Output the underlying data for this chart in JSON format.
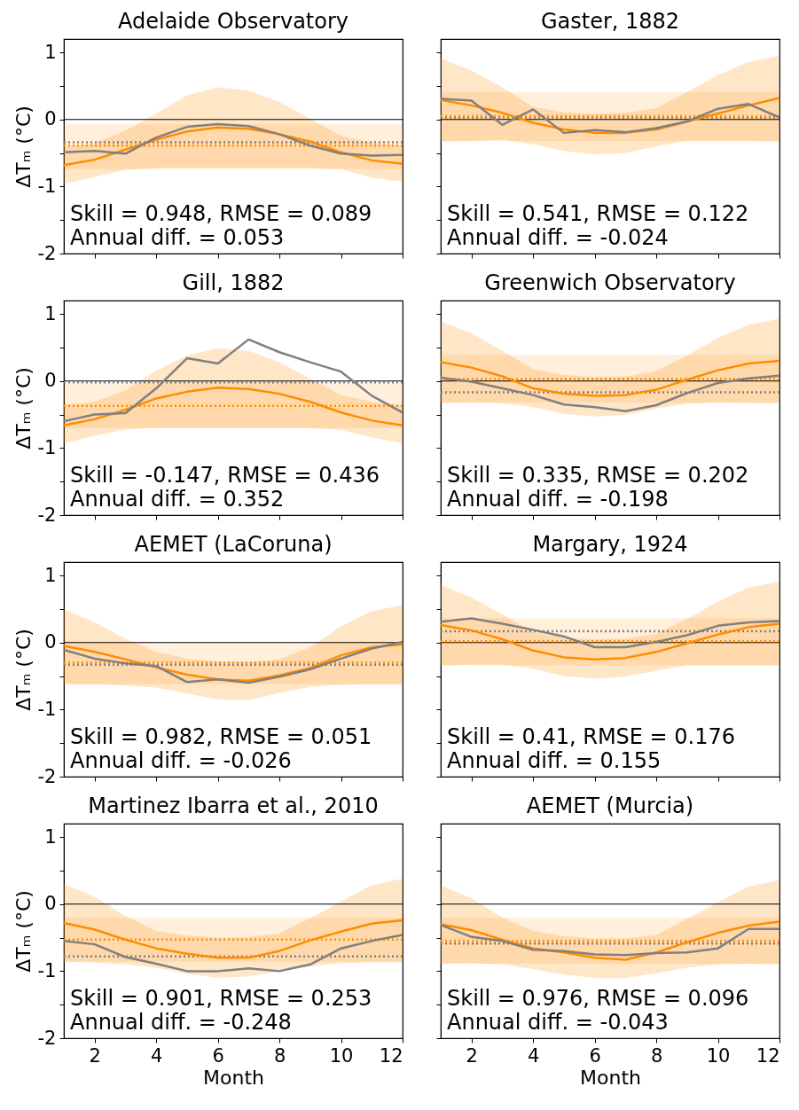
{
  "chart_data": [
    {
      "type": "line",
      "title": "Adelaide Observatory",
      "ylabel": "ΔTₘ (°C)",
      "x": [
        1,
        2,
        3,
        4,
        5,
        6,
        7,
        8,
        9,
        10,
        11,
        12
      ],
      "xlim": [
        1,
        12
      ],
      "ylim": [
        -2,
        1.2
      ],
      "xticks": [
        2,
        4,
        6,
        8,
        10,
        12
      ],
      "yticks": [
        -2,
        {
          "value": -1.5,
          "label": null
        },
        -1,
        {
          "value": -0.5,
          "label": null
        },
        0,
        {
          "value": 0.5,
          "label": null
        },
        1
      ],
      "tick_labels": "y",
      "series": [
        {
          "color": "#ff8c00",
          "values": [
            -0.68,
            -0.6,
            -0.45,
            -0.3,
            -0.18,
            -0.12,
            -0.14,
            -0.22,
            -0.33,
            -0.49,
            -0.61,
            -0.66
          ],
          "lower": [
            -0.96,
            -0.86,
            -0.75,
            -0.72,
            -0.72,
            -0.72,
            -0.72,
            -0.72,
            -0.72,
            -0.74,
            -0.87,
            -0.93
          ],
          "upper": [
            -0.42,
            -0.35,
            -0.17,
            0.09,
            0.36,
            0.48,
            0.43,
            0.26,
            0.01,
            -0.24,
            -0.35,
            -0.39
          ]
        },
        {
          "color": "#808080",
          "values": [
            -0.49,
            -0.47,
            -0.51,
            -0.27,
            -0.11,
            -0.07,
            -0.1,
            -0.22,
            -0.39,
            -0.51,
            -0.54,
            -0.53
          ]
        }
      ],
      "bands": [
        {
          "axis": "y",
          "from": -0.74,
          "to": -0.07,
          "color": "#ff8c00"
        }
      ],
      "ref_lines": [
        {
          "axis": "y",
          "value": 0,
          "color": "#000000"
        },
        {
          "axis": "y",
          "value": -0.34,
          "color": "#808080",
          "line_style": "dotted"
        },
        {
          "axis": "y",
          "value": -0.39,
          "color": "#ff8c00",
          "line_style": "dotted"
        }
      ],
      "annotations": [
        "Skill = 0.948,  RMSE = 0.089",
        "Annual diff. = 0.053"
      ]
    },
    {
      "type": "line",
      "title": "Gaster, 1882",
      "x": [
        1,
        2,
        3,
        4,
        5,
        6,
        7,
        8,
        9,
        10,
        11,
        12
      ],
      "xlim": [
        1,
        12
      ],
      "ylim": [
        -2,
        1.2
      ],
      "xticks": [
        2,
        4,
        6,
        8,
        10,
        12
      ],
      "yticks": [
        -2,
        {
          "value": -1.5,
          "label": null
        },
        -1,
        {
          "value": -0.5,
          "label": null
        },
        0,
        {
          "value": 0.5,
          "label": null
        },
        1
      ],
      "tick_labels": false,
      "series": [
        {
          "color": "#ff8c00",
          "values": [
            0.29,
            0.21,
            0.1,
            -0.05,
            -0.15,
            -0.2,
            -0.2,
            -0.15,
            -0.03,
            0.09,
            0.21,
            0.32
          ],
          "lower": [
            -0.33,
            -0.32,
            -0.3,
            -0.37,
            -0.47,
            -0.52,
            -0.5,
            -0.4,
            -0.32,
            -0.32,
            -0.32,
            -0.33
          ],
          "upper": [
            0.91,
            0.73,
            0.48,
            0.19,
            0.11,
            0.09,
            0.1,
            0.17,
            0.41,
            0.66,
            0.86,
            0.95
          ]
        },
        {
          "color": "#808080",
          "values": [
            0.31,
            0.28,
            -0.08,
            0.15,
            -0.2,
            -0.16,
            -0.19,
            -0.13,
            -0.03,
            0.16,
            0.23,
            0.03
          ]
        }
      ],
      "bands": [
        {
          "axis": "y",
          "from": -0.32,
          "to": 0.41,
          "color": "#ff8c00"
        }
      ],
      "ref_lines": [
        {
          "axis": "y",
          "value": 0,
          "color": "#000000"
        },
        {
          "axis": "y",
          "value": 0.03,
          "color": "#808080",
          "line_style": "dotted"
        },
        {
          "axis": "y",
          "value": 0.05,
          "color": "#ff8c00",
          "line_style": "dotted"
        }
      ],
      "annotations": [
        "Skill = 0.541,  RMSE = 0.122",
        "Annual diff. = -0.024"
      ]
    },
    {
      "type": "line",
      "title": "Gill, 1882",
      "ylabel": "ΔTₘ (°C)",
      "x": [
        1,
        2,
        3,
        4,
        5,
        6,
        7,
        8,
        9,
        10,
        11,
        12
      ],
      "xlim": [
        1,
        12
      ],
      "ylim": [
        -2,
        1.2
      ],
      "xticks": [
        2,
        4,
        6,
        8,
        10,
        12
      ],
      "yticks": [
        -2,
        {
          "value": -1.5,
          "label": null
        },
        -1,
        {
          "value": -0.5,
          "label": null
        },
        0,
        {
          "value": 0.5,
          "label": null
        },
        1
      ],
      "tick_labels": "y",
      "series": [
        {
          "color": "#ff8c00",
          "values": [
            -0.66,
            -0.57,
            -0.43,
            -0.26,
            -0.16,
            -0.1,
            -0.12,
            -0.19,
            -0.31,
            -0.47,
            -0.59,
            -0.66
          ],
          "lower": [
            -0.93,
            -0.82,
            -0.72,
            -0.7,
            -0.7,
            -0.7,
            -0.7,
            -0.7,
            -0.7,
            -0.73,
            -0.84,
            -0.93
          ],
          "upper": [
            -0.36,
            -0.31,
            -0.14,
            0.16,
            0.38,
            0.49,
            0.45,
            0.28,
            0.04,
            -0.21,
            -0.31,
            -0.36
          ]
        },
        {
          "color": "#808080",
          "values": [
            -0.6,
            -0.5,
            -0.48,
            -0.11,
            0.34,
            0.26,
            0.62,
            0.43,
            0.28,
            0.14,
            -0.22,
            -0.47
          ]
        }
      ],
      "bands": [
        {
          "axis": "y",
          "from": -0.7,
          "to": -0.03,
          "color": "#ff8c00"
        }
      ],
      "ref_lines": [
        {
          "axis": "y",
          "value": 0,
          "color": "#000000"
        },
        {
          "axis": "y",
          "value": -0.02,
          "color": "#808080",
          "line_style": "dotted"
        },
        {
          "axis": "y",
          "value": -0.37,
          "color": "#ff8c00",
          "line_style": "dotted"
        }
      ],
      "annotations": [
        "Skill = -0.147,  RMSE = 0.436",
        "Annual diff. = 0.352"
      ]
    },
    {
      "type": "line",
      "title": "Greenwich Observatory",
      "x": [
        1,
        2,
        3,
        4,
        5,
        6,
        7,
        8,
        9,
        10,
        11,
        12
      ],
      "xlim": [
        1,
        12
      ],
      "ylim": [
        -2,
        1.2
      ],
      "xticks": [
        2,
        4,
        6,
        8,
        10,
        12
      ],
      "yticks": [
        -2,
        {
          "value": -1.5,
          "label": null
        },
        -1,
        {
          "value": -0.5,
          "label": null
        },
        0,
        {
          "value": 0.5,
          "label": null
        },
        1
      ],
      "tick_labels": false,
      "series": [
        {
          "color": "#ff8c00",
          "values": [
            0.28,
            0.2,
            0.07,
            -0.11,
            -0.19,
            -0.22,
            -0.21,
            -0.13,
            0.02,
            0.16,
            0.26,
            0.3
          ],
          "lower": [
            -0.33,
            -0.32,
            -0.33,
            -0.39,
            -0.49,
            -0.53,
            -0.51,
            -0.41,
            -0.34,
            -0.32,
            -0.33,
            -0.33
          ],
          "upper": [
            0.89,
            0.71,
            0.45,
            0.18,
            0.09,
            0.06,
            0.07,
            0.15,
            0.38,
            0.64,
            0.84,
            0.93
          ]
        },
        {
          "color": "#808080",
          "values": [
            0.05,
            -0.01,
            -0.11,
            -0.21,
            -0.35,
            -0.39,
            -0.45,
            -0.36,
            -0.18,
            -0.03,
            0.04,
            0.08
          ]
        }
      ],
      "bands": [
        {
          "axis": "y",
          "from": -0.32,
          "to": 0.39,
          "color": "#ff8c00"
        }
      ],
      "ref_lines": [
        {
          "axis": "y",
          "value": 0,
          "color": "#000000"
        },
        {
          "axis": "y",
          "value": -0.17,
          "color": "#808080",
          "line_style": "dotted"
        },
        {
          "axis": "y",
          "value": 0.03,
          "color": "#ff8c00",
          "line_style": "dotted"
        }
      ],
      "annotations": [
        "Skill = 0.335,  RMSE = 0.202",
        "Annual diff. = -0.198"
      ]
    },
    {
      "type": "line",
      "title": "AEMET (LaCoruna)",
      "ylabel": "ΔTₘ (°C)",
      "x": [
        1,
        2,
        3,
        4,
        5,
        6,
        7,
        8,
        9,
        10,
        11,
        12
      ],
      "xlim": [
        1,
        12
      ],
      "ylim": [
        -2,
        1.2
      ],
      "xticks": [
        2,
        4,
        6,
        8,
        10,
        12
      ],
      "yticks": [
        -2,
        {
          "value": -1.5,
          "label": null
        },
        -1,
        {
          "value": -0.5,
          "label": null
        },
        0,
        {
          "value": 0.5,
          "label": null
        },
        1
      ],
      "tick_labels": "y",
      "series": [
        {
          "color": "#ff8c00",
          "values": [
            -0.05,
            -0.14,
            -0.25,
            -0.37,
            -0.48,
            -0.55,
            -0.57,
            -0.49,
            -0.38,
            -0.19,
            -0.07,
            -0.03
          ],
          "lower": [
            -0.62,
            -0.62,
            -0.64,
            -0.67,
            -0.76,
            -0.85,
            -0.86,
            -0.75,
            -0.66,
            -0.63,
            -0.62,
            -0.62
          ],
          "upper": [
            0.5,
            0.3,
            0.06,
            -0.14,
            -0.24,
            -0.28,
            -0.29,
            -0.25,
            -0.07,
            0.24,
            0.47,
            0.56
          ]
        },
        {
          "color": "#808080",
          "values": [
            -0.11,
            -0.24,
            -0.31,
            -0.35,
            -0.59,
            -0.55,
            -0.6,
            -0.51,
            -0.4,
            -0.24,
            -0.09,
            0.01
          ]
        }
      ],
      "bands": [
        {
          "axis": "y",
          "from": -0.62,
          "to": -0.01,
          "color": "#ff8c00"
        }
      ],
      "ref_lines": [
        {
          "axis": "y",
          "value": 0,
          "color": "#000000"
        },
        {
          "axis": "y",
          "value": -0.33,
          "color": "#808080",
          "line_style": "dotted"
        },
        {
          "axis": "y",
          "value": -0.3,
          "color": "#ff8c00",
          "line_style": "dotted"
        }
      ],
      "annotations": [
        "Skill = 0.982,  RMSE = 0.051",
        "Annual diff. = -0.026"
      ]
    },
    {
      "type": "line",
      "title": "Margary, 1924",
      "x": [
        1,
        2,
        3,
        4,
        5,
        6,
        7,
        8,
        9,
        10,
        11,
        12
      ],
      "xlim": [
        1,
        12
      ],
      "ylim": [
        -2,
        1.2
      ],
      "xticks": [
        2,
        4,
        6,
        8,
        10,
        12
      ],
      "yticks": [
        -2,
        {
          "value": -1.5,
          "label": null
        },
        -1,
        {
          "value": -0.5,
          "label": null
        },
        0,
        {
          "value": 0.5,
          "label": null
        },
        1
      ],
      "tick_labels": false,
      "series": [
        {
          "color": "#ff8c00",
          "values": [
            0.26,
            0.18,
            0.05,
            -0.12,
            -0.22,
            -0.25,
            -0.23,
            -0.14,
            -0.01,
            0.12,
            0.23,
            0.28
          ],
          "lower": [
            -0.34,
            -0.33,
            -0.33,
            -0.39,
            -0.5,
            -0.54,
            -0.51,
            -0.42,
            -0.34,
            -0.34,
            -0.34,
            -0.34
          ],
          "upper": [
            0.86,
            0.67,
            0.42,
            0.16,
            0.07,
            0.05,
            0.06,
            0.13,
            0.35,
            0.61,
            0.82,
            0.91
          ]
        },
        {
          "color": "#808080",
          "values": [
            0.31,
            0.36,
            0.28,
            0.19,
            0.09,
            -0.07,
            -0.07,
            0.01,
            0.11,
            0.25,
            0.3,
            0.32
          ]
        }
      ],
      "bands": [
        {
          "axis": "y",
          "from": -0.34,
          "to": 0.36,
          "color": "#ff8c00"
        }
      ],
      "ref_lines": [
        {
          "axis": "y",
          "value": 0,
          "color": "#000000"
        },
        {
          "axis": "y",
          "value": 0.17,
          "color": "#808080",
          "line_style": "dotted"
        },
        {
          "axis": "y",
          "value": 0.02,
          "color": "#ff8c00",
          "line_style": "dotted"
        }
      ],
      "annotations": [
        "Skill = 0.41,  RMSE = 0.176",
        "Annual diff. = 0.155"
      ]
    },
    {
      "type": "line",
      "title": "Martinez Ibarra et al., 2010",
      "ylabel": "ΔTₘ (°C)",
      "xlabel": "Month",
      "x": [
        1,
        2,
        3,
        4,
        5,
        6,
        7,
        8,
        9,
        10,
        11,
        12
      ],
      "xlim": [
        1,
        12
      ],
      "ylim": [
        -2,
        1.2
      ],
      "xticks": [
        2,
        4,
        6,
        8,
        10,
        12
      ],
      "yticks": [
        -2,
        {
          "value": -1.5,
          "label": null
        },
        -1,
        {
          "value": -0.5,
          "label": null
        },
        0,
        {
          "value": 0.5,
          "label": null
        },
        1
      ],
      "series": [
        {
          "color": "#ff8c00",
          "values": [
            -0.28,
            -0.38,
            -0.53,
            -0.66,
            -0.74,
            -0.8,
            -0.8,
            -0.7,
            -0.54,
            -0.41,
            -0.29,
            -0.24
          ],
          "lower": [
            -0.86,
            -0.87,
            -0.9,
            -0.95,
            -1.04,
            -1.1,
            -1.08,
            -1.0,
            -0.93,
            -0.88,
            -0.87,
            -0.87
          ],
          "upper": [
            0.3,
            0.11,
            -0.18,
            -0.4,
            -0.47,
            -0.5,
            -0.49,
            -0.44,
            -0.21,
            0.04,
            0.28,
            0.38
          ]
        },
        {
          "color": "#808080",
          "values": [
            -0.55,
            -0.6,
            -0.79,
            -0.89,
            -1.0,
            -1.0,
            -0.96,
            -1.0,
            -0.9,
            -0.66,
            -0.55,
            -0.46
          ]
        }
      ],
      "bands": [
        {
          "axis": "y",
          "from": -0.86,
          "to": -0.2,
          "color": "#ff8c00"
        }
      ],
      "ref_lines": [
        {
          "axis": "y",
          "value": 0,
          "color": "#000000"
        },
        {
          "axis": "y",
          "value": -0.78,
          "color": "#808080",
          "line_style": "dotted"
        },
        {
          "axis": "y",
          "value": -0.53,
          "color": "#ff8c00",
          "line_style": "dotted"
        }
      ],
      "annotations": [
        "Skill = 0.901,  RMSE = 0.253",
        "Annual diff. = -0.248"
      ]
    },
    {
      "type": "line",
      "title": "AEMET (Murcia)",
      "xlabel": "Month",
      "x": [
        1,
        2,
        3,
        4,
        5,
        6,
        7,
        8,
        9,
        10,
        11,
        12
      ],
      "xlim": [
        1,
        12
      ],
      "ylim": [
        -2,
        1.2
      ],
      "xticks": [
        2,
        4,
        6,
        8,
        10,
        12
      ],
      "yticks": [
        -2,
        {
          "value": -1.5,
          "label": null
        },
        -1,
        {
          "value": -0.5,
          "label": null
        },
        0,
        {
          "value": 0.5,
          "label": null
        },
        1
      ],
      "tick_labels": "x",
      "series": [
        {
          "color": "#ff8c00",
          "values": [
            -0.3,
            -0.39,
            -0.53,
            -0.66,
            -0.72,
            -0.8,
            -0.83,
            -0.72,
            -0.57,
            -0.43,
            -0.32,
            -0.26
          ],
          "lower": [
            -0.89,
            -0.88,
            -0.9,
            -0.97,
            -1.05,
            -1.1,
            -1.1,
            -1.03,
            -0.95,
            -0.9,
            -0.89,
            -0.9
          ],
          "upper": [
            0.28,
            0.09,
            -0.2,
            -0.4,
            -0.48,
            -0.51,
            -0.51,
            -0.46,
            -0.22,
            0.03,
            0.26,
            0.36
          ]
        },
        {
          "color": "#808080",
          "values": [
            -0.31,
            -0.49,
            -0.55,
            -0.68,
            -0.7,
            -0.75,
            -0.76,
            -0.73,
            -0.72,
            -0.66,
            -0.37,
            -0.37
          ]
        }
      ],
      "bands": [
        {
          "axis": "y",
          "from": -0.89,
          "to": -0.2,
          "color": "#ff8c00"
        }
      ],
      "ref_lines": [
        {
          "axis": "y",
          "value": 0,
          "color": "#000000"
        },
        {
          "axis": "y",
          "value": -0.59,
          "color": "#808080",
          "line_style": "dotted"
        },
        {
          "axis": "y",
          "value": -0.55,
          "color": "#ff8c00",
          "line_style": "dotted"
        }
      ],
      "annotations": [
        "Skill = 0.976,  RMSE = 0.096",
        "Annual diff. = -0.043"
      ]
    }
  ]
}
